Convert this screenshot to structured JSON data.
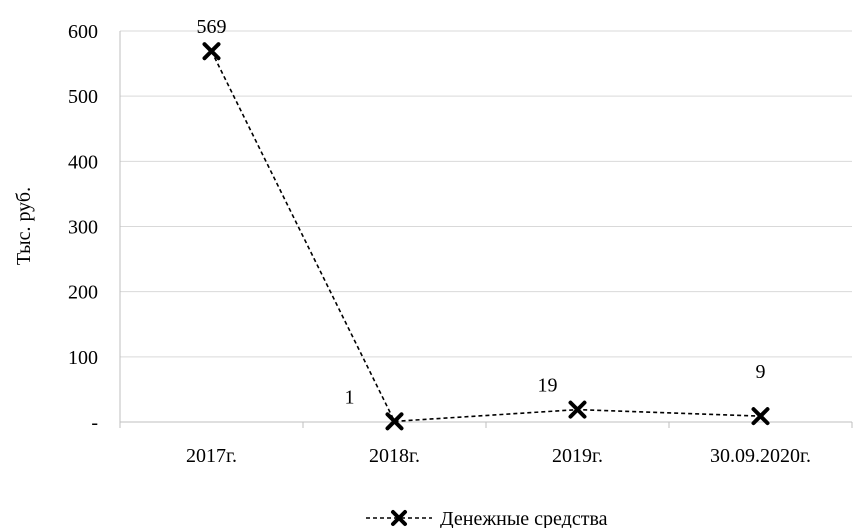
{
  "chart_data": {
    "type": "line",
    "title": "",
    "xlabel": "",
    "ylabel": "Тыс. руб.",
    "categories": [
      "2017г.",
      "2018г.",
      "2019г.",
      "30.09.2020г."
    ],
    "ylim": [
      0,
      600
    ],
    "yticks": [
      0,
      100,
      200,
      300,
      400,
      500,
      600
    ],
    "ytick_labels": [
      "-",
      "100",
      "200",
      "300",
      "400",
      "500",
      "600"
    ],
    "grid": true,
    "legend_position": "bottom",
    "series": [
      {
        "name": "Денежные средства",
        "values": [
          569,
          1,
          19,
          9
        ],
        "data_labels": [
          "569",
          "1",
          "19",
          "9"
        ],
        "color": "#000000",
        "line_style": "dashed",
        "marker": "x"
      }
    ]
  }
}
